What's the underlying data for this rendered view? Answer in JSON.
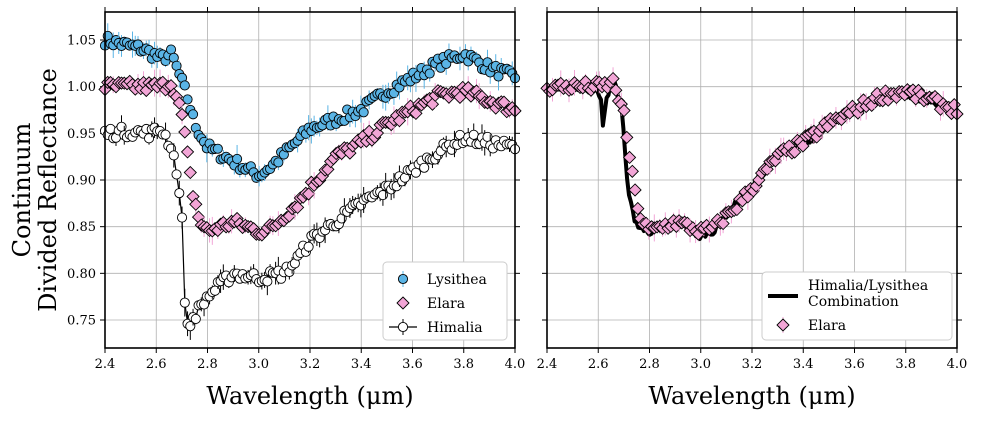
{
  "chart_data": [
    {
      "type": "scatter",
      "ylabel_lines": [
        "Continuum",
        "Divided Reflectance"
      ],
      "xlabel": "Wavelength (μm)",
      "xlim": [
        2.4,
        4.0
      ],
      "ylim": [
        0.72,
        1.08
      ],
      "xticks": [
        "2.4",
        "2.6",
        "2.8",
        "3.0",
        "3.2",
        "3.4",
        "3.6",
        "3.8",
        "4.0"
      ],
      "yticks": [
        "0.75",
        "0.80",
        "0.85",
        "0.90",
        "0.95",
        "1.00",
        "1.05"
      ],
      "grid": true,
      "legend_position": "lower-right",
      "series": [
        {
          "name": "Lysithea",
          "marker": "circle",
          "color": "#5ab4e5",
          "errcolor": "#5ab4e5",
          "anchors": [
            [
              2.4,
              1.05
            ],
            [
              2.55,
              1.04
            ],
            [
              2.62,
              1.03
            ],
            [
              2.66,
              1.035
            ],
            [
              2.68,
              1.02
            ],
            [
              2.72,
              0.99
            ],
            [
              2.75,
              0.96
            ],
            [
              2.8,
              0.935
            ],
            [
              2.9,
              0.92
            ],
            [
              3.0,
              0.905
            ],
            [
              3.05,
              0.915
            ],
            [
              3.2,
              0.955
            ],
            [
              3.3,
              0.965
            ],
            [
              3.4,
              0.975
            ],
            [
              3.5,
              0.995
            ],
            [
              3.6,
              1.01
            ],
            [
              3.7,
              1.025
            ],
            [
              3.8,
              1.035
            ],
            [
              3.9,
              1.02
            ],
            [
              4.0,
              1.01
            ]
          ]
        },
        {
          "name": "Elara",
          "marker": "diamond",
          "color": "#f2a5d6",
          "errcolor": "#f2a5d6",
          "anchors": [
            [
              2.4,
              1.0
            ],
            [
              2.55,
              1.0
            ],
            [
              2.62,
              1.0
            ],
            [
              2.66,
              1.005
            ],
            [
              2.7,
              0.97
            ],
            [
              2.74,
              0.89
            ],
            [
              2.77,
              0.855
            ],
            [
              2.8,
              0.845
            ],
            [
              2.9,
              0.855
            ],
            [
              3.0,
              0.845
            ],
            [
              3.05,
              0.848
            ],
            [
              3.15,
              0.875
            ],
            [
              3.3,
              0.925
            ],
            [
              3.4,
              0.94
            ],
            [
              3.5,
              0.96
            ],
            [
              3.6,
              0.975
            ],
            [
              3.7,
              0.99
            ],
            [
              3.8,
              0.995
            ],
            [
              3.9,
              0.985
            ],
            [
              4.0,
              0.975
            ]
          ]
        },
        {
          "name": "Himalia",
          "marker": "circle",
          "color": "#ffffff",
          "errcolor": "#000000",
          "line": true,
          "anchors": [
            [
              2.4,
              0.95
            ],
            [
              2.5,
              0.952
            ],
            [
              2.58,
              0.95
            ],
            [
              2.62,
              0.955
            ],
            [
              2.64,
              0.945
            ],
            [
              2.66,
              0.935
            ],
            [
              2.68,
              0.91
            ],
            [
              2.7,
              0.86
            ],
            [
              2.71,
              0.78
            ],
            [
              2.72,
              0.74
            ],
            [
              2.75,
              0.755
            ],
            [
              2.8,
              0.775
            ],
            [
              2.9,
              0.8
            ],
            [
              3.0,
              0.795
            ],
            [
              3.1,
              0.8
            ],
            [
              3.15,
              0.815
            ],
            [
              3.2,
              0.835
            ],
            [
              3.3,
              0.855
            ],
            [
              3.4,
              0.875
            ],
            [
              3.5,
              0.89
            ],
            [
              3.6,
              0.91
            ],
            [
              3.7,
              0.93
            ],
            [
              3.8,
              0.945
            ],
            [
              3.9,
              0.94
            ],
            [
              4.0,
              0.935
            ]
          ]
        }
      ]
    },
    {
      "type": "line",
      "xlabel": "Wavelength (μm)",
      "xlim": [
        2.4,
        4.0
      ],
      "ylim": [
        0.72,
        1.08
      ],
      "xticks": [
        "2.4",
        "2.6",
        "2.8",
        "3.0",
        "3.2",
        "3.4",
        "3.6",
        "3.8",
        "4.0"
      ],
      "grid": true,
      "legend_position": "lower-right",
      "series": [
        {
          "name": "Himalia/Lysithea",
          "name2": "Combination",
          "marker": "line",
          "color": "#000000",
          "anchors": [
            [
              2.4,
              1.0
            ],
            [
              2.5,
              1.0
            ],
            [
              2.58,
              0.995
            ],
            [
              2.61,
              0.99
            ],
            [
              2.62,
              0.955
            ],
            [
              2.63,
              0.99
            ],
            [
              2.66,
              1.005
            ],
            [
              2.69,
              0.98
            ],
            [
              2.72,
              0.88
            ],
            [
              2.75,
              0.85
            ],
            [
              2.8,
              0.845
            ],
            [
              2.9,
              0.855
            ],
            [
              3.0,
              0.84
            ],
            [
              3.05,
              0.845
            ],
            [
              3.15,
              0.88
            ],
            [
              3.3,
              0.925
            ],
            [
              3.4,
              0.94
            ],
            [
              3.45,
              0.945
            ],
            [
              3.5,
              0.96
            ],
            [
              3.6,
              0.975
            ],
            [
              3.7,
              0.985
            ],
            [
              3.8,
              0.99
            ],
            [
              3.9,
              0.985
            ],
            [
              4.0,
              0.975
            ]
          ]
        },
        {
          "name": "Elara",
          "marker": "diamond",
          "color": "#f2a5d6",
          "errcolor": "#f2a5d6",
          "anchors": [
            [
              2.4,
              1.0
            ],
            [
              2.55,
              1.0
            ],
            [
              2.62,
              1.0
            ],
            [
              2.66,
              1.005
            ],
            [
              2.7,
              0.97
            ],
            [
              2.74,
              0.89
            ],
            [
              2.77,
              0.855
            ],
            [
              2.8,
              0.845
            ],
            [
              2.9,
              0.855
            ],
            [
              3.0,
              0.845
            ],
            [
              3.05,
              0.848
            ],
            [
              3.15,
              0.875
            ],
            [
              3.3,
              0.925
            ],
            [
              3.4,
              0.94
            ],
            [
              3.5,
              0.96
            ],
            [
              3.6,
              0.975
            ],
            [
              3.7,
              0.99
            ],
            [
              3.8,
              0.995
            ],
            [
              3.9,
              0.985
            ],
            [
              4.0,
              0.975
            ]
          ]
        }
      ]
    }
  ]
}
